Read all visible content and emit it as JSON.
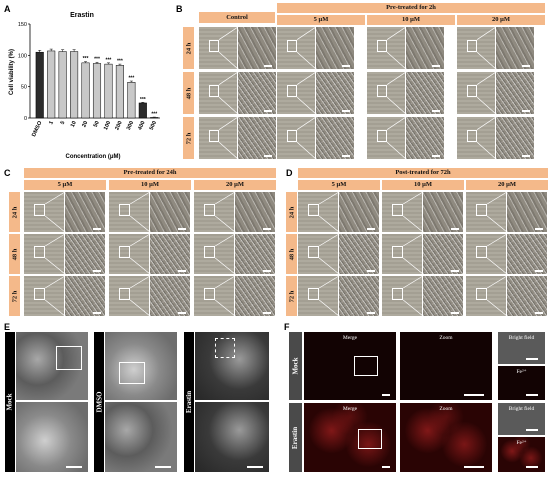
{
  "panels": {
    "a": "A",
    "b": "B",
    "c": "C",
    "d": "D",
    "e": "E",
    "f": "F"
  },
  "chart_data": {
    "type": "bar",
    "title": "Erastin",
    "xlabel": "Concentration (μM)",
    "ylabel": "Cell viability (%)",
    "categories": [
      "DMSO",
      "1",
      "5",
      "10",
      "20",
      "50",
      "100",
      "200",
      "300",
      "400",
      "500"
    ],
    "values": [
      105,
      107,
      106,
      106,
      88,
      87,
      86,
      84,
      57,
      24,
      1
    ],
    "errors": [
      3,
      3,
      3,
      3,
      2,
      2,
      2,
      2,
      2,
      1,
      0.5
    ],
    "significance": [
      "",
      "",
      "",
      "",
      "***",
      "***",
      "***",
      "***",
      "***",
      "***",
      "***"
    ],
    "ylim": [
      0,
      150
    ],
    "yticks": [
      "0",
      "50",
      "100",
      "150"
    ],
    "bar_colors": [
      "#2b2b2b",
      "#c8c8c8",
      "#c8c8c8",
      "#c8c8c8",
      "#c8c8c8",
      "#c8c8c8",
      "#c8c8c8",
      "#c8c8c8",
      "#c8c8c8",
      "#2b2b2b",
      "#c8c8c8"
    ]
  },
  "panelB": {
    "control": "Control",
    "pre": "Pre-treated for 2h",
    "concs": [
      "5 μM",
      "10 μM",
      "20 μM"
    ],
    "rows": [
      "24 h",
      "48 h",
      "72 h"
    ]
  },
  "panelC": {
    "title": "Pre-treated for 24h",
    "concs": [
      "5 μM",
      "10 μM",
      "20 μM"
    ],
    "rows": [
      "24 h",
      "48 h",
      "72 h"
    ]
  },
  "panelD": {
    "title": "Post-treated for 72h",
    "concs": [
      "5 μM",
      "10 μM",
      "20 μM"
    ],
    "rows": [
      "24 h",
      "48 h",
      "72 h"
    ]
  },
  "panelE": {
    "labels": [
      "Mock",
      "DMSO",
      "Erastin"
    ]
  },
  "panelF": {
    "rows": [
      "Mock",
      "Erastin"
    ],
    "merge": "Merge",
    "zoom": "Zoom",
    "bright": "Bright field",
    "fe": "Fe²⁺"
  }
}
